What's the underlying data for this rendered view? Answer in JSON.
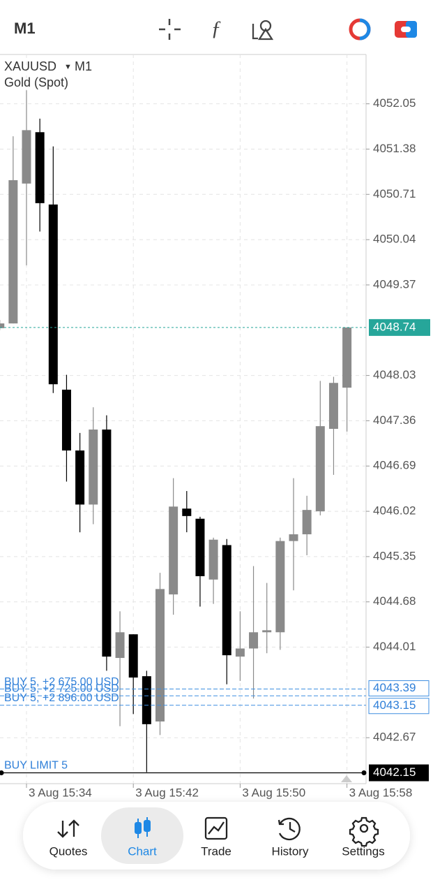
{
  "toolbar": {
    "timeframe": "M1"
  },
  "chart_data": {
    "type": "candlestick",
    "symbol": "XAUUSD",
    "timeframe": "M1",
    "description": "Gold (Spot)",
    "categories": [
      null,
      null,
      "3 Aug 15:34",
      null,
      null,
      null,
      null,
      null,
      null,
      null,
      "3 Aug 15:42",
      null,
      null,
      null,
      null,
      null,
      null,
      null,
      "3 Aug 15:50",
      null,
      null,
      null,
      null,
      null,
      null,
      null,
      "3 Aug 15:58"
    ],
    "open": [
      4048.73,
      4048.8,
      4050.87,
      4051.63,
      4050.56,
      4047.82,
      4046.92,
      4046.12,
      4047.23,
      4043.85,
      4044.2,
      4043.58,
      4042.91,
      4044.79,
      4046.06,
      4045.91,
      4045.01,
      4045.52,
      4043.87,
      4043.99,
      4044.23,
      4044.23,
      4045.58,
      4045.68,
      4046.02,
      4047.24,
      4047.85
    ],
    "high": [
      4048.85,
      4051.57,
      4052.25,
      4051.83,
      4051.42,
      4048.04,
      4047.18,
      4047.56,
      4047.44,
      4044.54,
      4044.2,
      4043.66,
      4045.11,
      4046.51,
      4046.32,
      4045.94,
      4045.63,
      4045.61,
      4044.54,
      4045.21,
      4044.96,
      4045.63,
      4046.51,
      4046.25,
      4047.95,
      4048.01,
      4048.74
    ],
    "low": [
      4048.7,
      4048.8,
      4049.66,
      4050.16,
      4047.77,
      4046.46,
      4045.71,
      4045.83,
      4043.66,
      4042.84,
      4043.02,
      4042.16,
      4042.71,
      4044.49,
      4045.71,
      4044.61,
      4044.65,
      4043.46,
      4043.51,
      4043.25,
      4043.92,
      4043.97,
      4044.85,
      4045.37,
      4045.96,
      4046.56,
      4047.2
    ],
    "close": [
      4048.8,
      4050.92,
      4051.66,
      4050.58,
      4047.9,
      4046.92,
      4046.12,
      4047.23,
      4043.87,
      4044.23,
      4043.56,
      4042.87,
      4044.87,
      4046.09,
      4045.95,
      4045.06,
      4045.6,
      4043.89,
      4043.99,
      4044.23,
      4044.26,
      4045.58,
      4045.68,
      4046.04,
      4047.28,
      4047.92,
      4048.74
    ],
    "up_color": "#8a8a8a",
    "down_color": "#000000",
    "ylim": [
      4041.99,
      4052.78
    ],
    "yticks": [
      4052.05,
      4051.38,
      4050.71,
      4050.04,
      4049.37,
      4048.03,
      4047.36,
      4046.69,
      4046.02,
      4045.35,
      4044.68,
      4044.01,
      4042.67
    ],
    "grid": true,
    "current_price": 4048.74,
    "orders": [
      {
        "label": "BUY 5, +2 675.00 USD",
        "price": 4043.39
      },
      {
        "label": "BUY 5, +2 725.00 USD",
        "price": 4043.29
      },
      {
        "label": "BUY 5, +2 896.00 USD",
        "price": 4043.15
      }
    ],
    "pending": {
      "label": "BUY LIMIT 5",
      "price": 4042.15
    }
  },
  "nav": [
    "Quotes",
    "Chart",
    "Trade",
    "History",
    "Settings"
  ]
}
